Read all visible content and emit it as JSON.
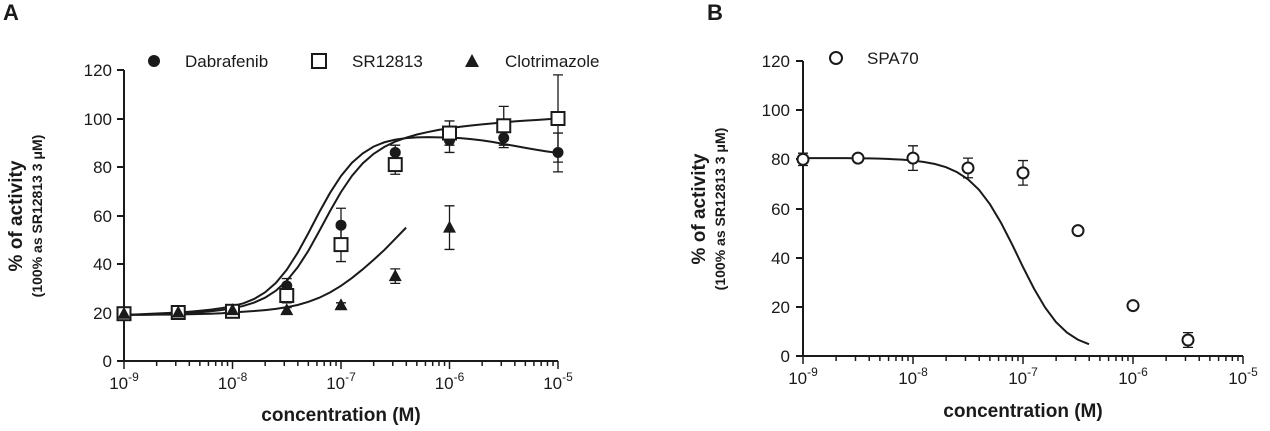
{
  "chart_data": [
    {
      "panel": "A",
      "type": "scatter",
      "xscale": "log",
      "xlim_exp": [
        -9,
        -5
      ],
      "x_tick_exponents": [
        "-9",
        "-8",
        "-7",
        "-6",
        "-5"
      ],
      "ylim": [
        0,
        120
      ],
      "y_ticks": [
        0,
        20,
        40,
        60,
        80,
        100,
        120
      ],
      "xlabel": "concentration (M)",
      "ylabel": "% of activity",
      "ylabel_sub": "(100% as SR12813 3 μM)",
      "legend_position": "top",
      "series": [
        {
          "name": "Dabrafenib",
          "marker": "filled-circle",
          "x_exp": [
            -9,
            -8.5,
            -8,
            -7.5,
            -7,
            -6.5,
            -6,
            -5.5,
            -5
          ],
          "y": [
            20,
            20,
            21,
            31,
            56,
            86,
            91,
            92,
            86
          ],
          "err": [
            1.5,
            1,
            1.5,
            3,
            7,
            3,
            5,
            4,
            8
          ],
          "curve_y": [
            19,
            19.2,
            19.4,
            19.6,
            19.8,
            20,
            20.3,
            20.7,
            21.2,
            21.8,
            22.6,
            23.8,
            25.6,
            28.3,
            32.2,
            37.6,
            44.6,
            52.8,
            61.4,
            69.4,
            76.3,
            81.7,
            85.6,
            88.4,
            90.2,
            91.3,
            91.9,
            92.2,
            92.3,
            92.2,
            92.1,
            91.9,
            91.5,
            91,
            90.3,
            89.5,
            88.7,
            87.9,
            87.1,
            86.4,
            85.8
          ]
        },
        {
          "name": "SR12813",
          "marker": "open-square",
          "x_exp": [
            -9,
            -8.5,
            -8,
            -7.5,
            -7,
            -6.5,
            -6,
            -5.5,
            -5
          ],
          "y": [
            19.5,
            20,
            20.5,
            27,
            48,
            81,
            94,
            97,
            100
          ],
          "err": [
            1.5,
            1,
            1.5,
            3,
            7,
            4,
            5,
            8,
            18
          ],
          "curve_y": [
            19,
            19.1,
            19.2,
            19.3,
            19.4,
            19.6,
            19.8,
            20.1,
            20.5,
            21,
            21.7,
            22.7,
            24.1,
            26.1,
            29,
            33.1,
            38.6,
            45.5,
            53.6,
            61.9,
            69.7,
            76.3,
            81.5,
            85.4,
            88.3,
            90.5,
            92.1,
            93.4,
            94.4,
            95.3,
            96,
            96.6,
            97.1,
            97.6,
            98,
            98.4,
            98.8,
            99.1,
            99.4,
            99.7,
            100
          ]
        },
        {
          "name": "Clotrimazole",
          "marker": "filled-triangle",
          "x_exp": [
            -9,
            -8.5,
            -8,
            -7.5,
            -7,
            -6.5,
            -6
          ],
          "y": [
            19.5,
            20,
            21,
            21,
            23,
            35,
            55
          ],
          "err": [
            1,
            0.8,
            1,
            1,
            1,
            3,
            9
          ],
          "curve_y": [
            19,
            19,
            19,
            19.1,
            19.1,
            19.2,
            19.3,
            19.4,
            19.5,
            19.7,
            20,
            20.3,
            20.6,
            21,
            21.5,
            22.2,
            23.1,
            24.4,
            26.1,
            28.3,
            31,
            34.2,
            37.8,
            41.7,
            45.8,
            50.4,
            55
          ]
        }
      ]
    },
    {
      "panel": "B",
      "type": "scatter",
      "xscale": "log",
      "xlim_exp": [
        -9,
        -5
      ],
      "x_tick_exponents": [
        "-9",
        "-8",
        "-7",
        "-6",
        "-5"
      ],
      "ylim": [
        0,
        120
      ],
      "y_ticks": [
        0,
        20,
        40,
        60,
        80,
        100,
        120
      ],
      "xlabel": "concentration (M)",
      "ylabel": "% of activity",
      "ylabel_sub": "(100% as SR12813 3 μM)",
      "legend_position": "top-left",
      "series": [
        {
          "name": "SPA70",
          "marker": "open-circle",
          "x_exp": [
            -9,
            -8.5,
            -8,
            -7.5,
            -7,
            -6.5,
            -6,
            -5.5
          ],
          "y": [
            80,
            80.5,
            80.5,
            76.5,
            74.5,
            51,
            20.5,
            6.5
          ],
          "err": [
            2.5,
            1,
            5,
            4,
            5,
            1,
            1,
            3
          ],
          "curve_y": [
            80.5,
            80.5,
            80.5,
            80.5,
            80.5,
            80.4,
            80.4,
            80.3,
            80.1,
            79.9,
            79.5,
            78.9,
            78.1,
            76.8,
            74.8,
            71.9,
            67.6,
            61.7,
            54.2,
            45.5,
            36.2,
            27.4,
            19.8,
            13.8,
            9.5,
            6.6,
            4.8
          ]
        }
      ]
    }
  ],
  "panels": {
    "a": {
      "letter": "A"
    },
    "b": {
      "letter": "B"
    }
  },
  "legend": {
    "a": [
      "Dabrafenib",
      "SR12813",
      "Clotrimazole"
    ],
    "b": [
      "SPA70"
    ]
  },
  "x_tick_base": "10",
  "colors": {
    "ink": "#1a1a1a",
    "background": "#ffffff"
  }
}
